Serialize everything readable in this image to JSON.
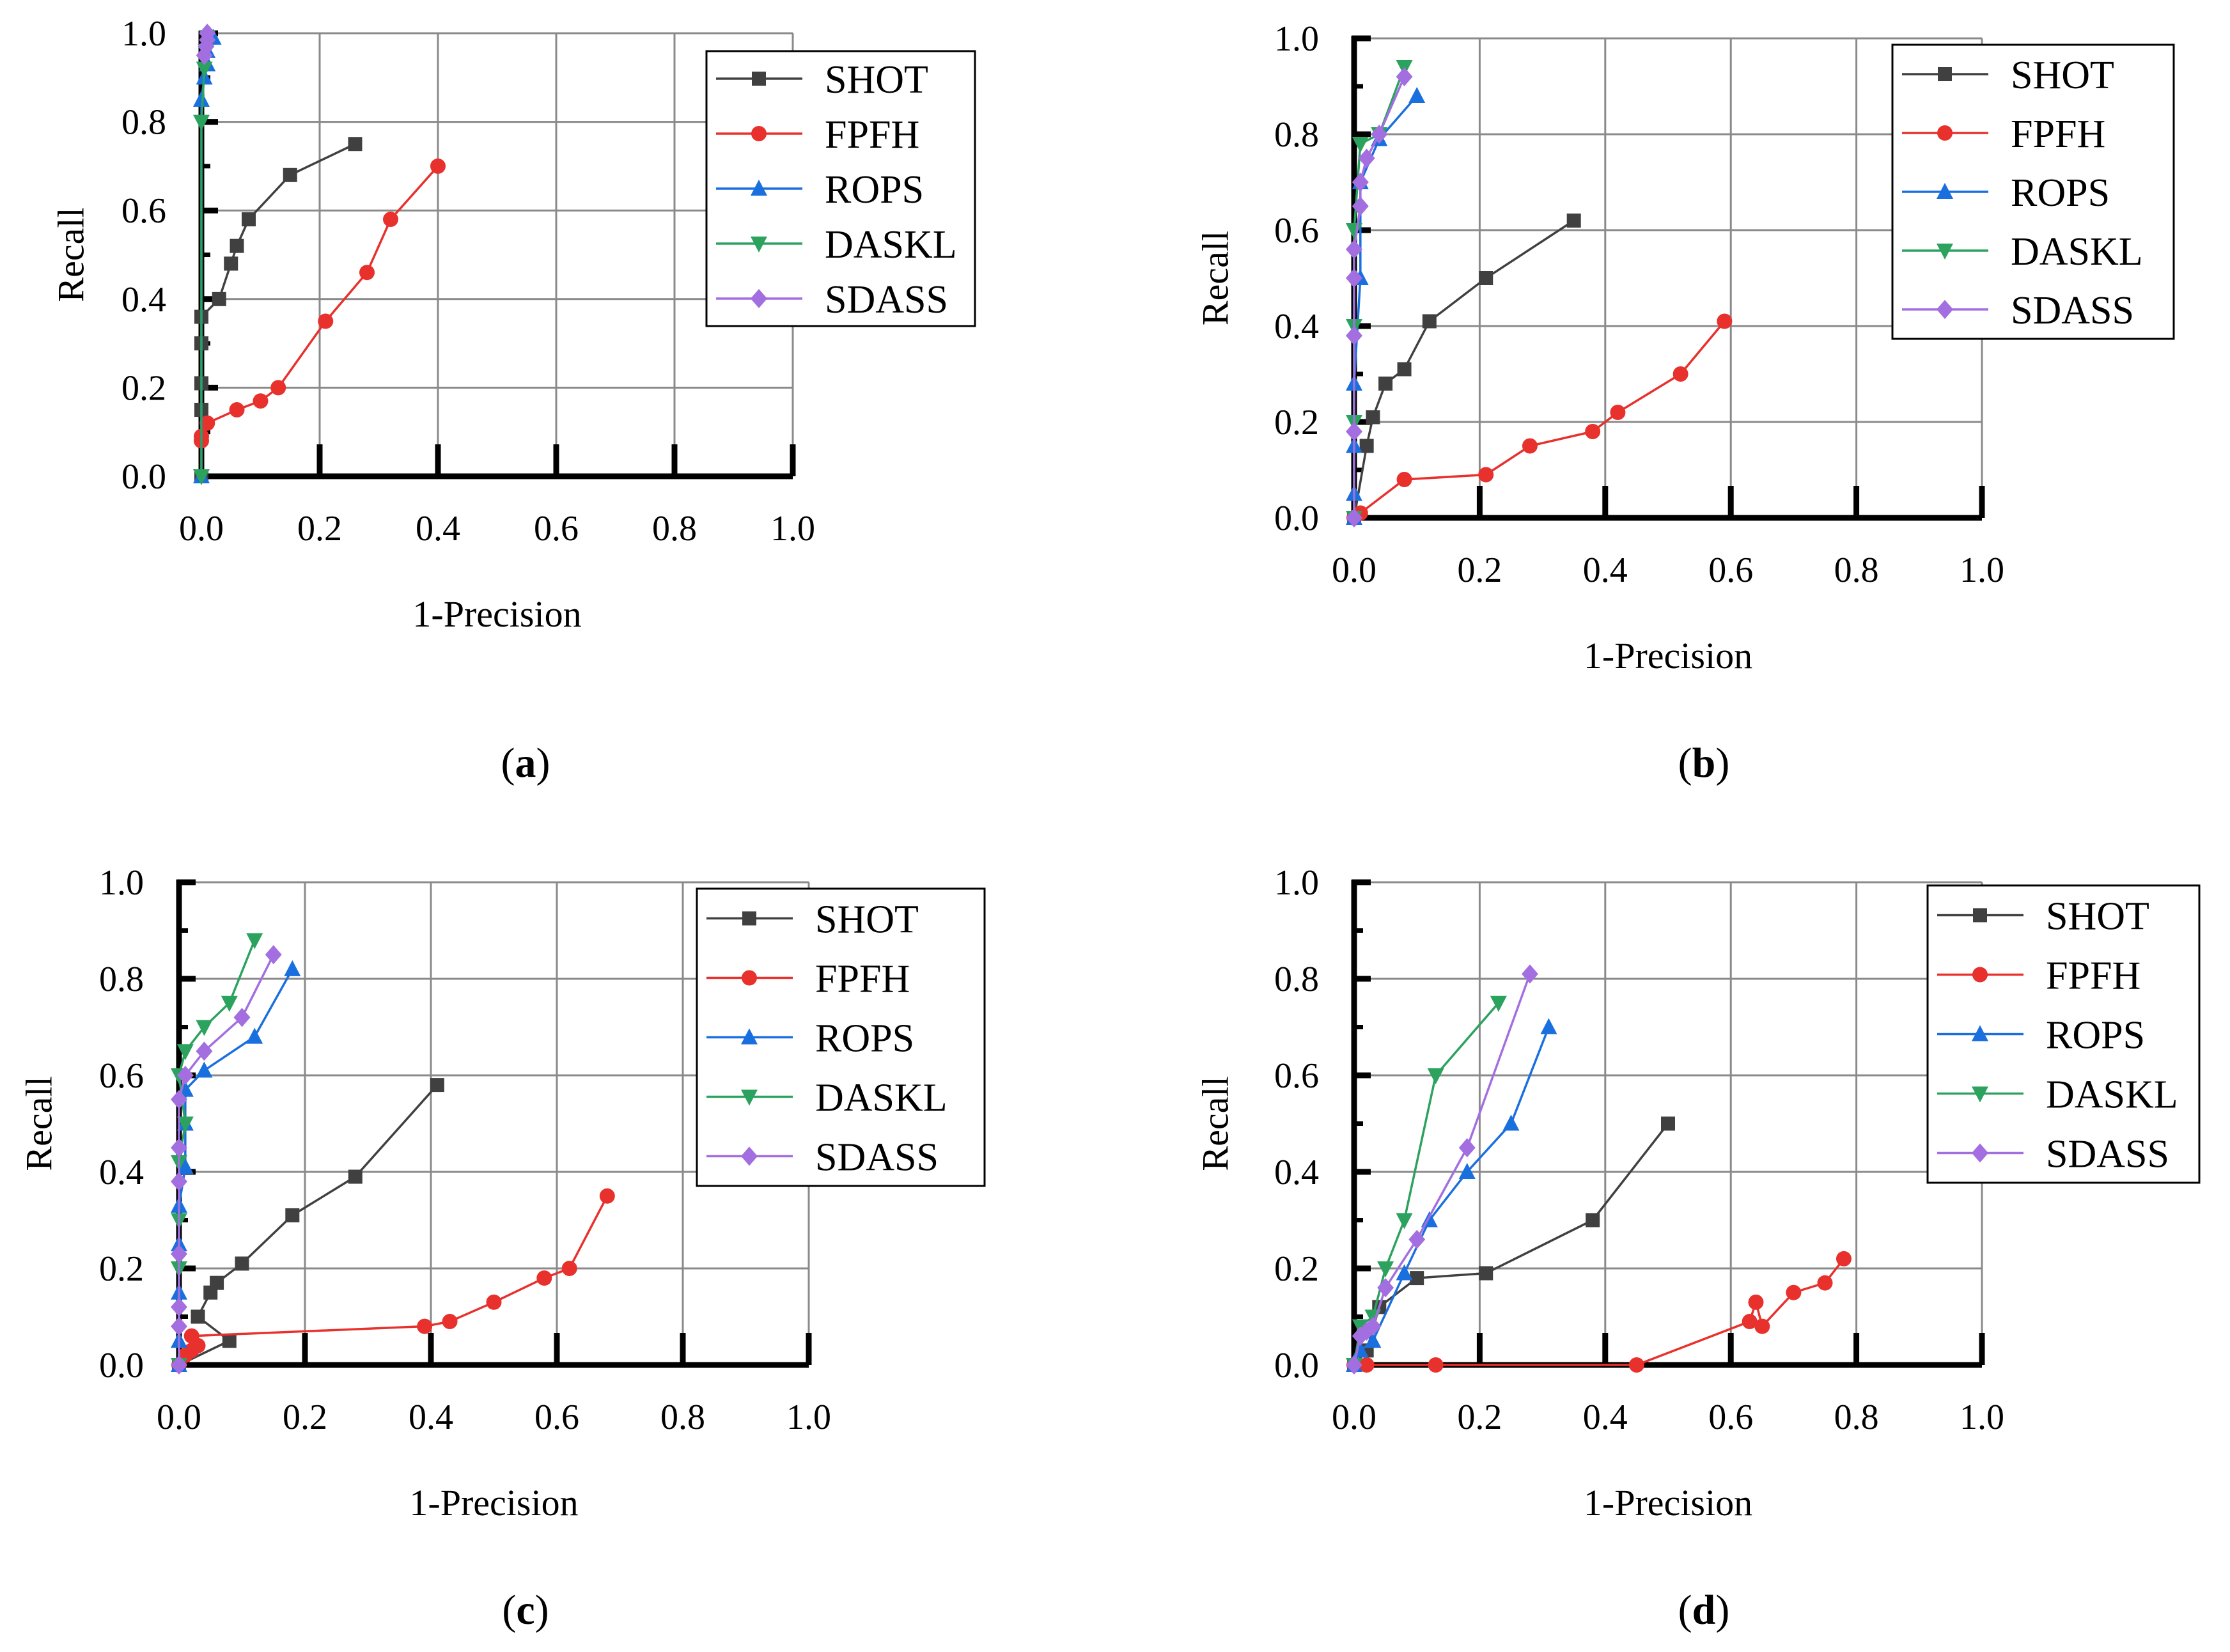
{
  "series_style": {
    "SHOT": {
      "color": "#404040",
      "marker": "square"
    },
    "FPFH": {
      "color": "#e8302c",
      "marker": "circle"
    },
    "ROPS": {
      "color": "#1a6fdf",
      "marker": "triangle-up"
    },
    "DASKL": {
      "color": "#2ca25f",
      "marker": "triangle-down"
    },
    "SDASS": {
      "color": "#a36ee0",
      "marker": "diamond"
    }
  },
  "chart_data": [
    {
      "type": "line",
      "panel_label": "a",
      "xlabel": "1-Precision",
      "ylabel": "Recall",
      "xlim": [
        0,
        1.0
      ],
      "ylim": [
        0,
        1.0
      ],
      "xticks": [
        "0.0",
        "0.2",
        "0.4",
        "0.6",
        "0.8",
        "1.0"
      ],
      "yticks": [
        "0.0",
        "0.2",
        "0.4",
        "0.6",
        "0.8",
        "1.0"
      ],
      "grid": true,
      "legend_position": "top-right",
      "series": [
        {
          "name": "SHOT",
          "points": [
            [
              0,
              0
            ],
            [
              0,
              0.15
            ],
            [
              0,
              0.21
            ],
            [
              0,
              0.3
            ],
            [
              0,
              0.36
            ],
            [
              0.03,
              0.4
            ],
            [
              0.05,
              0.48
            ],
            [
              0.06,
              0.52
            ],
            [
              0.08,
              0.58
            ],
            [
              0.15,
              0.68
            ],
            [
              0.26,
              0.75
            ]
          ]
        },
        {
          "name": "FPFH",
          "points": [
            [
              0,
              0.08
            ],
            [
              0,
              0.09
            ],
            [
              0.01,
              0.12
            ],
            [
              0.06,
              0.15
            ],
            [
              0.1,
              0.17
            ],
            [
              0.13,
              0.2
            ],
            [
              0.21,
              0.35
            ],
            [
              0.28,
              0.46
            ],
            [
              0.32,
              0.58
            ],
            [
              0.4,
              0.7
            ]
          ]
        },
        {
          "name": "ROPS",
          "points": [
            [
              0,
              0
            ],
            [
              0,
              0.85
            ],
            [
              0.005,
              0.9
            ],
            [
              0.01,
              0.93
            ],
            [
              0.01,
              0.96
            ],
            [
              0.02,
              0.99
            ]
          ]
        },
        {
          "name": "DASKL",
          "points": [
            [
              0,
              0
            ],
            [
              0,
              0.8
            ],
            [
              0.005,
              0.92
            ],
            [
              0.008,
              0.96
            ],
            [
              0.01,
              0.99
            ]
          ]
        },
        {
          "name": "SDASS",
          "points": [
            [
              0.005,
              0.95
            ],
            [
              0.008,
              0.97
            ],
            [
              0.01,
              0.985
            ],
            [
              0.01,
              1.0
            ]
          ]
        }
      ]
    },
    {
      "type": "line",
      "panel_label": "b",
      "xlabel": "1-Precision",
      "ylabel": "Recall",
      "xlim": [
        0,
        1.0
      ],
      "ylim": [
        0,
        1.0
      ],
      "xticks": [
        "0.0",
        "0.2",
        "0.4",
        "0.6",
        "0.8",
        "1.0"
      ],
      "yticks": [
        "0.0",
        "0.2",
        "0.4",
        "0.6",
        "0.8",
        "1.0"
      ],
      "grid": true,
      "legend_position": "top-right",
      "series": [
        {
          "name": "SHOT",
          "points": [
            [
              0,
              0
            ],
            [
              0.02,
              0.15
            ],
            [
              0.03,
              0.21
            ],
            [
              0.05,
              0.28
            ],
            [
              0.08,
              0.31
            ],
            [
              0.12,
              0.41
            ],
            [
              0.21,
              0.5
            ],
            [
              0.35,
              0.62
            ]
          ]
        },
        {
          "name": "FPFH",
          "points": [
            [
              0,
              0
            ],
            [
              0.01,
              0.01
            ],
            [
              0.08,
              0.08
            ],
            [
              0.21,
              0.09
            ],
            [
              0.28,
              0.15
            ],
            [
              0.38,
              0.18
            ],
            [
              0.42,
              0.22
            ],
            [
              0.52,
              0.3
            ],
            [
              0.59,
              0.41
            ]
          ]
        },
        {
          "name": "ROPS",
          "points": [
            [
              0,
              0
            ],
            [
              0,
              0.05
            ],
            [
              0,
              0.15
            ],
            [
              0,
              0.28
            ],
            [
              0.01,
              0.5
            ],
            [
              0.01,
              0.7
            ],
            [
              0.04,
              0.79
            ],
            [
              0.1,
              0.88
            ]
          ]
        },
        {
          "name": "DASKL",
          "points": [
            [
              0,
              0
            ],
            [
              0,
              0.2
            ],
            [
              0,
              0.4
            ],
            [
              0,
              0.6
            ],
            [
              0.01,
              0.78
            ],
            [
              0.04,
              0.8
            ],
            [
              0.08,
              0.94
            ]
          ]
        },
        {
          "name": "SDASS",
          "points": [
            [
              0,
              0
            ],
            [
              0,
              0.18
            ],
            [
              0,
              0.38
            ],
            [
              0,
              0.5
            ],
            [
              0,
              0.56
            ],
            [
              0.01,
              0.65
            ],
            [
              0.01,
              0.7
            ],
            [
              0.02,
              0.75
            ],
            [
              0.04,
              0.8
            ],
            [
              0.08,
              0.92
            ]
          ]
        }
      ]
    },
    {
      "type": "line",
      "panel_label": "c",
      "xlabel": "1-Precision",
      "ylabel": "Recall",
      "xlim": [
        0,
        1.0
      ],
      "ylim": [
        0,
        1.0
      ],
      "xticks": [
        "0.0",
        "0.2",
        "0.4",
        "0.6",
        "0.8",
        "1.0"
      ],
      "yticks": [
        "0.0",
        "0.2",
        "0.4",
        "0.6",
        "0.8",
        "1.0"
      ],
      "grid": true,
      "legend_position": "top-right",
      "series": [
        {
          "name": "SHOT",
          "points": [
            [
              0,
              0
            ],
            [
              0.08,
              0.05
            ],
            [
              0.03,
              0.1
            ],
            [
              0.05,
              0.15
            ],
            [
              0.06,
              0.17
            ],
            [
              0.1,
              0.21
            ],
            [
              0.18,
              0.31
            ],
            [
              0.28,
              0.39
            ],
            [
              0.41,
              0.58
            ]
          ]
        },
        {
          "name": "FPFH",
          "points": [
            [
              0,
              0
            ],
            [
              0.01,
              0.02
            ],
            [
              0.02,
              0.03
            ],
            [
              0.03,
              0.04
            ],
            [
              0.02,
              0.06
            ],
            [
              0.39,
              0.08
            ],
            [
              0.43,
              0.09
            ],
            [
              0.5,
              0.13
            ],
            [
              0.58,
              0.18
            ],
            [
              0.62,
              0.2
            ],
            [
              0.68,
              0.35
            ]
          ]
        },
        {
          "name": "ROPS",
          "points": [
            [
              0,
              0
            ],
            [
              0,
              0.05
            ],
            [
              0,
              0.15
            ],
            [
              0,
              0.25
            ],
            [
              0,
              0.33
            ],
            [
              0.01,
              0.41
            ],
            [
              0.01,
              0.5
            ],
            [
              0.01,
              0.57
            ],
            [
              0.04,
              0.61
            ],
            [
              0.12,
              0.68
            ],
            [
              0.18,
              0.82
            ]
          ]
        },
        {
          "name": "DASKL",
          "points": [
            [
              0,
              0
            ],
            [
              0,
              0.2
            ],
            [
              0,
              0.3
            ],
            [
              0,
              0.42
            ],
            [
              0.01,
              0.5
            ],
            [
              0,
              0.6
            ],
            [
              0.01,
              0.65
            ],
            [
              0.04,
              0.7
            ],
            [
              0.08,
              0.75
            ],
            [
              0.12,
              0.88
            ]
          ]
        },
        {
          "name": "SDASS",
          "points": [
            [
              0,
              0
            ],
            [
              0,
              0.08
            ],
            [
              0,
              0.12
            ],
            [
              0,
              0.23
            ],
            [
              0,
              0.38
            ],
            [
              0,
              0.45
            ],
            [
              0,
              0.55
            ],
            [
              0.01,
              0.6
            ],
            [
              0.04,
              0.65
            ],
            [
              0.1,
              0.72
            ],
            [
              0.15,
              0.85
            ]
          ]
        }
      ]
    },
    {
      "type": "line",
      "panel_label": "d",
      "xlabel": "1-Precision",
      "ylabel": "Recall",
      "xlim": [
        0,
        1.0
      ],
      "ylim": [
        0,
        1.0
      ],
      "xticks": [
        "0.0",
        "0.2",
        "0.4",
        "0.6",
        "0.8",
        "1.0"
      ],
      "yticks": [
        "0.0",
        "0.2",
        "0.4",
        "0.6",
        "0.8",
        "1.0"
      ],
      "grid": true,
      "legend_position": "top-right",
      "series": [
        {
          "name": "SHOT",
          "points": [
            [
              0,
              0
            ],
            [
              0.02,
              0.03
            ],
            [
              0.04,
              0.12
            ],
            [
              0.1,
              0.18
            ],
            [
              0.21,
              0.19
            ],
            [
              0.38,
              0.3
            ],
            [
              0.5,
              0.5
            ]
          ]
        },
        {
          "name": "FPFH",
          "points": [
            [
              0,
              0
            ],
            [
              0.02,
              0
            ],
            [
              0.13,
              0
            ],
            [
              0.45,
              0
            ],
            [
              0.63,
              0.09
            ],
            [
              0.64,
              0.13
            ],
            [
              0.65,
              0.08
            ],
            [
              0.7,
              0.15
            ],
            [
              0.75,
              0.17
            ],
            [
              0.78,
              0.22
            ]
          ]
        },
        {
          "name": "ROPS",
          "points": [
            [
              0,
              0
            ],
            [
              0.01,
              0.03
            ],
            [
              0.03,
              0.05
            ],
            [
              0.08,
              0.19
            ],
            [
              0.12,
              0.3
            ],
            [
              0.18,
              0.4
            ],
            [
              0.25,
              0.5
            ],
            [
              0.31,
              0.7
            ]
          ]
        },
        {
          "name": "DASKL",
          "points": [
            [
              0,
              0
            ],
            [
              0.01,
              0.08
            ],
            [
              0.03,
              0.1
            ],
            [
              0.05,
              0.2
            ],
            [
              0.08,
              0.3
            ],
            [
              0.13,
              0.6
            ],
            [
              0.23,
              0.75
            ]
          ]
        },
        {
          "name": "SDASS",
          "points": [
            [
              0,
              0
            ],
            [
              0.01,
              0.06
            ],
            [
              0.02,
              0.07
            ],
            [
              0.03,
              0.08
            ],
            [
              0.05,
              0.16
            ],
            [
              0.1,
              0.26
            ],
            [
              0.18,
              0.45
            ],
            [
              0.28,
              0.81
            ]
          ]
        }
      ]
    }
  ]
}
